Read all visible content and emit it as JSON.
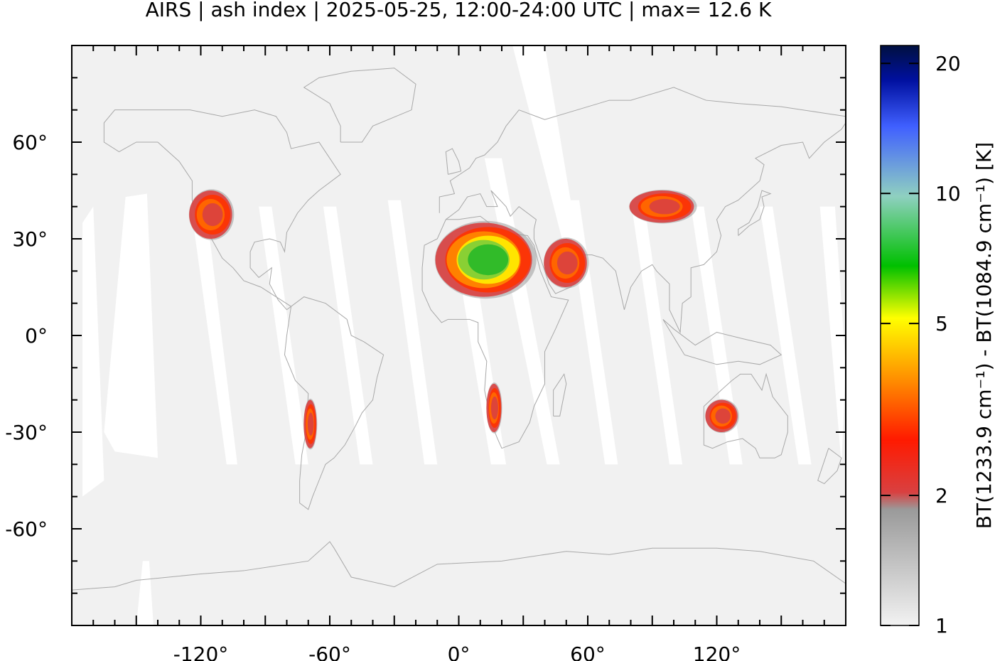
{
  "title": "AIRS | ash index | 2025-05-25, 12:00-24:00 UTC | max= 12.6 K",
  "chart_data": {
    "type": "heatmap",
    "title": "AIRS | ash index | 2025-05-25, 12:00-24:00 UTC | max= 12.6 K",
    "xlabel": "",
    "ylabel": "",
    "xlim": [
      -180,
      180
    ],
    "ylim": [
      -90,
      90
    ],
    "x_ticks": [
      -120,
      -60,
      0,
      60,
      120
    ],
    "y_ticks": [
      60,
      30,
      0,
      -30,
      -60
    ],
    "x_tick_labels": [
      "-120°",
      "-60°",
      "0°",
      "60°",
      "120°"
    ],
    "y_tick_labels": [
      "60°",
      "30°",
      "0°",
      "-30°",
      "-60°"
    ],
    "colorbar": {
      "label": "BT(1233.9 cm⁻¹) - BT(1084.9 cm⁻¹) [K]",
      "scale": "log",
      "range": [
        1,
        22
      ],
      "ticks": [
        1,
        2,
        5,
        10,
        20
      ],
      "tick_labels": [
        "1",
        "2",
        "5",
        "10",
        "20"
      ],
      "colors": [
        "#f2f2f2",
        "#9a9a9a",
        "#d94040",
        "#ff1a00",
        "#ff8a00",
        "#ffff00",
        "#00c000",
        "#8fd0c0",
        "#4060ff",
        "#0010a0",
        "#001040"
      ]
    },
    "max_value": 12.6,
    "features": [
      {
        "region": "Sahara",
        "lon": [
          -10,
          35
        ],
        "lat": [
          12,
          35
        ],
        "intensity": "high"
      },
      {
        "region": "Arabian Peninsula",
        "lon": [
          40,
          60
        ],
        "lat": [
          15,
          30
        ],
        "intensity": "medium"
      },
      {
        "region": "Central Asia / Taklamakan",
        "lon": [
          80,
          110
        ],
        "lat": [
          35,
          45
        ],
        "intensity": "medium"
      },
      {
        "region": "Southwest USA",
        "lon": [
          -125,
          -105
        ],
        "lat": [
          30,
          45
        ],
        "intensity": "medium"
      },
      {
        "region": "Andes / Atacama",
        "lon": [
          -72,
          -66
        ],
        "lat": [
          -35,
          -20
        ],
        "intensity": "medium"
      },
      {
        "region": "Namibia",
        "lon": [
          13,
          20
        ],
        "lat": [
          -30,
          -15
        ],
        "intensity": "medium"
      },
      {
        "region": "Western Australia",
        "lon": [
          115,
          130
        ],
        "lat": [
          -30,
          -20
        ],
        "intensity": "medium"
      }
    ]
  }
}
